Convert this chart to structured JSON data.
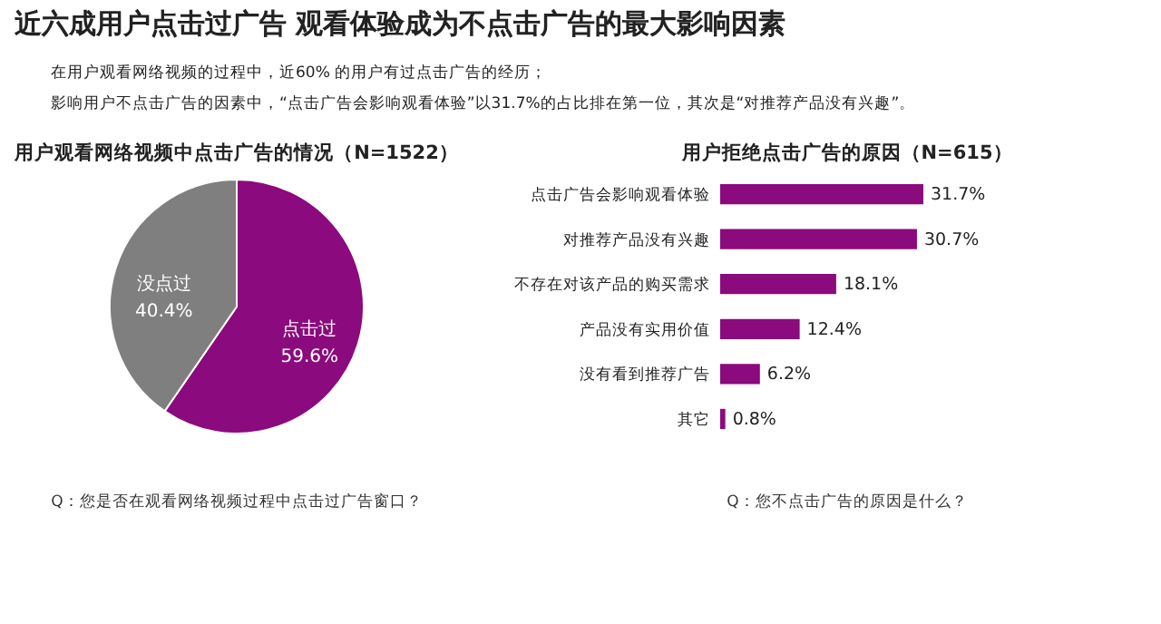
{
  "chart_data": [
    {
      "type": "other",
      "title": "近六成用户点击过广告  观看体验成为不点击广告的最大影响因素",
      "annotations": [
        "在用户观看网络视频的过程中，近60% 的用户有过点击广告的经历；",
        "影响用户不点击广告的因素中，“点击广告会影响观看体验”以31.7%的占比排在第一位，其次是“对推荐产品没有兴趣”。"
      ]
    },
    {
      "type": "pie",
      "title": "用户观看网络视频中点击广告的情况（N=1522）",
      "categories": [
        "点击过",
        "没点过"
      ],
      "values": [
        59.6,
        40.4
      ],
      "colors": [
        "#8b0a7d",
        "#7f7f7f"
      ],
      "value_labels": [
        "59.6%",
        "40.4%"
      ],
      "annotations": [
        "Q：您是否在观看网络视频过程中点击过广告窗口？"
      ]
    },
    {
      "type": "bar",
      "orientation": "horizontal",
      "title": "用户拒绝点击广告的原因（N=615）",
      "categories": [
        "点击广告会影响观看体验",
        "对推荐产品没有兴趣",
        "不存在对该产品的购买需求",
        "产品没有实用价值",
        "没有看到推荐广告",
        "其它"
      ],
      "values": [
        31.7,
        30.7,
        18.1,
        12.4,
        6.2,
        0.8
      ],
      "color": "#8b0a7d",
      "value_labels": [
        "31.7%",
        "30.7%",
        "18.1%",
        "12.4%",
        "6.2%",
        "0.8%"
      ],
      "tick_labels": "y",
      "annotations": [
        "Q：您不点击广告的原因是什么？"
      ]
    }
  ]
}
